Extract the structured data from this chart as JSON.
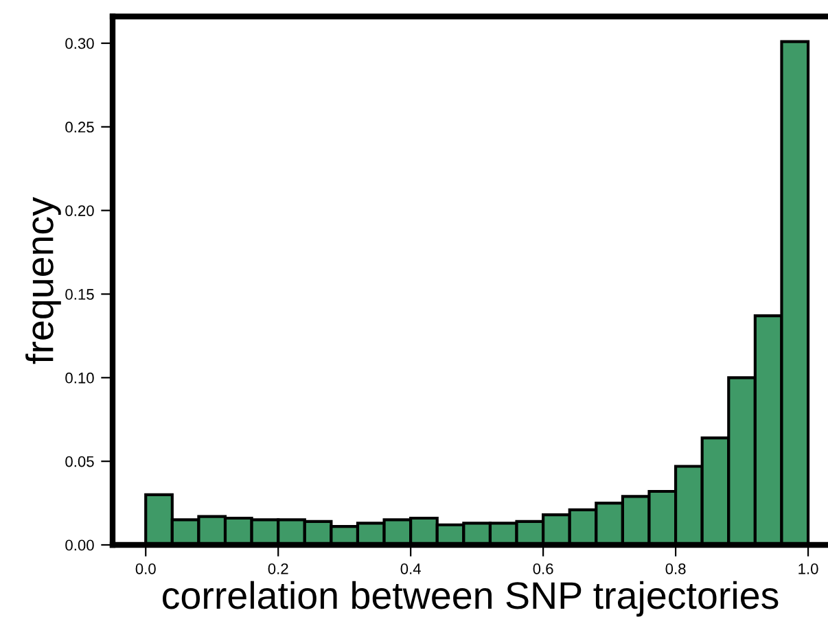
{
  "chart_data": {
    "type": "histogram",
    "xlabel": "correlation between SNP trajectories",
    "ylabel": "frequency",
    "bins": [
      0.0,
      0.04,
      0.08,
      0.12,
      0.16,
      0.2,
      0.24,
      0.28,
      0.32,
      0.36,
      0.4,
      0.44,
      0.48,
      0.52,
      0.56,
      0.6,
      0.64,
      0.68,
      0.72,
      0.76,
      0.8,
      0.84,
      0.88,
      0.92,
      0.96,
      1.0
    ],
    "values": [
      0.03,
      0.015,
      0.017,
      0.016,
      0.015,
      0.015,
      0.014,
      0.011,
      0.013,
      0.015,
      0.016,
      0.012,
      0.013,
      0.013,
      0.014,
      0.018,
      0.021,
      0.025,
      0.029,
      0.032,
      0.047,
      0.064,
      0.1,
      0.137,
      0.301
    ],
    "color": "#3f9a67",
    "xlim": [
      -0.05,
      1.03
    ],
    "ylim": [
      0,
      0.316
    ],
    "xticks": [
      {
        "value": 0,
        "label": "0.0"
      },
      {
        "value": 0.2,
        "label": "0.2"
      },
      {
        "value": 0.4,
        "label": "0.4"
      },
      {
        "value": 0.6,
        "label": "0.6"
      },
      {
        "value": 0.8,
        "label": "0.8"
      },
      {
        "value": 1,
        "label": "1.0"
      }
    ],
    "yticks": [
      {
        "value": 0,
        "label": "0.00"
      },
      {
        "value": 0.05,
        "label": "0.05"
      },
      {
        "value": 0.1,
        "label": "0.10"
      },
      {
        "value": 0.15,
        "label": "0.15"
      },
      {
        "value": 0.2,
        "label": "0.20"
      },
      {
        "value": 0.25,
        "label": "0.25"
      },
      {
        "value": 0.3,
        "label": "0.30"
      }
    ],
    "grid": false,
    "legend": false
  }
}
